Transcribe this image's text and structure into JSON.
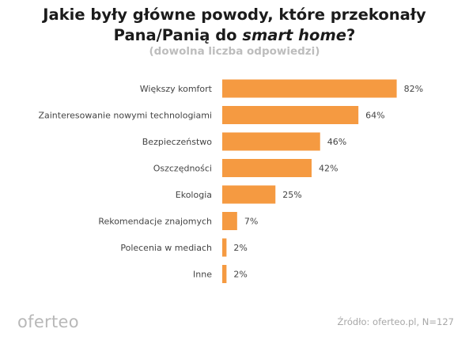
{
  "title": {
    "line1": "Jakie były główne powody, które przekonały",
    "line2_prefix": "Pana/Panią do ",
    "line2_italic": "smart home",
    "line2_suffix": "?"
  },
  "subtitle": "(dowolna liczba odpowiedzi)",
  "logo": "oferteo",
  "source": "Źródło: oferteo.pl, N=127",
  "colors": {
    "bar": "#f59a41",
    "label": "#444444"
  },
  "chart_data": {
    "type": "bar",
    "orientation": "horizontal",
    "categories": [
      "Większy komfort",
      "Zainteresowanie nowymi technologiami",
      "Bezpieczeństwo",
      "Oszczędności",
      "Ekologia",
      "Rekomendacje znajomych",
      "Polecenia w mediach",
      "Inne"
    ],
    "values": [
      82,
      64,
      46,
      42,
      25,
      7,
      2,
      2
    ],
    "value_labels": [
      "82%",
      "64%",
      "46%",
      "42%",
      "25%",
      "7%",
      "2%",
      "2%"
    ],
    "unit": "%",
    "xlim": [
      0,
      100
    ],
    "grid": false,
    "legend": false
  }
}
